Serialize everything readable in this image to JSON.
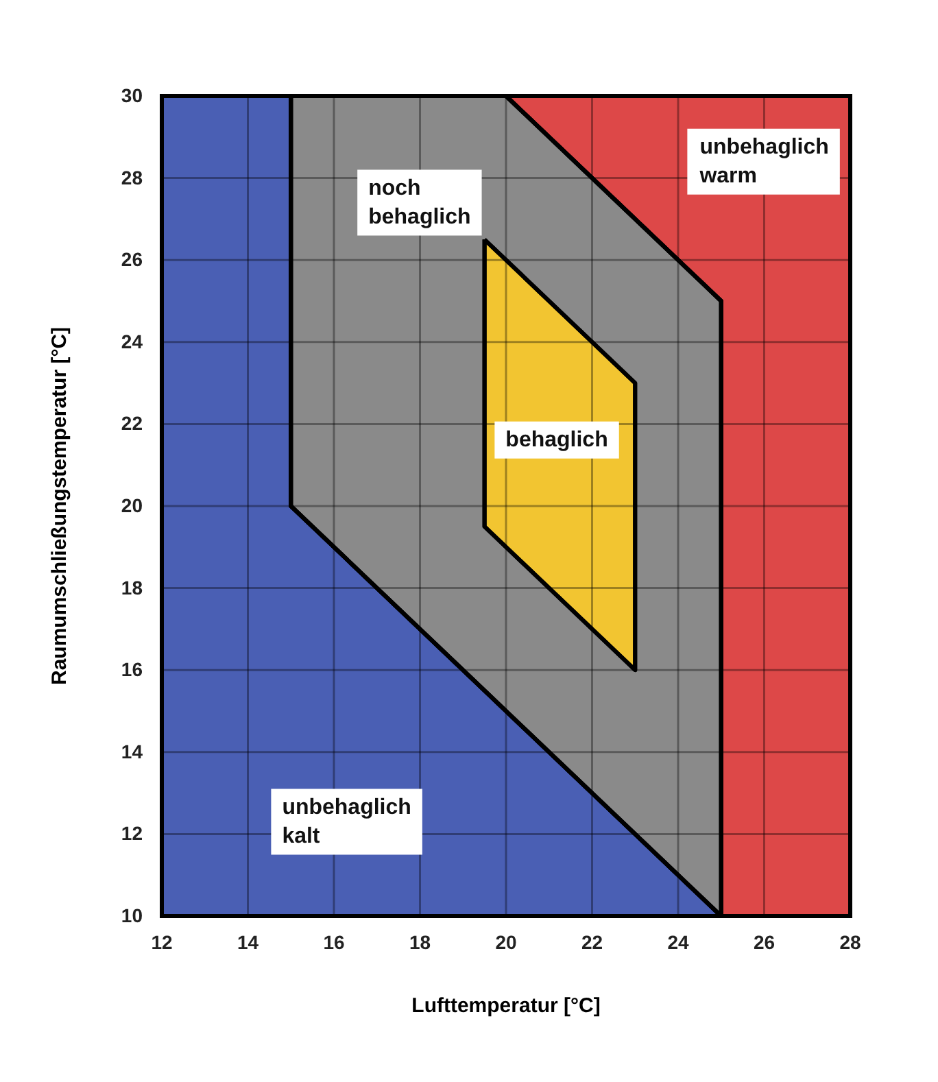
{
  "chart_data": {
    "type": "area",
    "xlabel": "Lufttemperatur [°C]",
    "ylabel": "Raumumschließungstemperatur [°C]",
    "xlim": [
      12,
      28
    ],
    "ylim": [
      10,
      30
    ],
    "xticks": [
      12,
      14,
      16,
      18,
      20,
      22,
      24,
      26,
      28
    ],
    "yticks": [
      10,
      12,
      14,
      16,
      18,
      20,
      22,
      24,
      26,
      28,
      30
    ],
    "grid": true,
    "series": [
      {
        "name": "unbehaglich\nkalt",
        "color": "#4a5fb4",
        "x": [
          12,
          25,
          15,
          15,
          12,
          12
        ],
        "values": [
          10,
          10,
          20,
          30,
          30,
          10
        ]
      },
      {
        "name": "unbehaglich\nwarm",
        "color": "#dd4848",
        "x": [
          20,
          28,
          28,
          25,
          25,
          20
        ],
        "values": [
          30,
          30,
          10,
          10,
          25,
          30
        ]
      },
      {
        "name": "noch\nbehaglich",
        "color": "#8a8a8a",
        "x": [
          15,
          20,
          25,
          25,
          15,
          15
        ],
        "values": [
          30,
          30,
          25,
          10,
          20,
          30
        ]
      },
      {
        "name": "behaglich",
        "color": "#f2c531",
        "x": [
          19.5,
          23,
          23,
          19.5,
          19.5
        ],
        "values": [
          26.5,
          23,
          16,
          19.5,
          26.5
        ]
      }
    ]
  }
}
